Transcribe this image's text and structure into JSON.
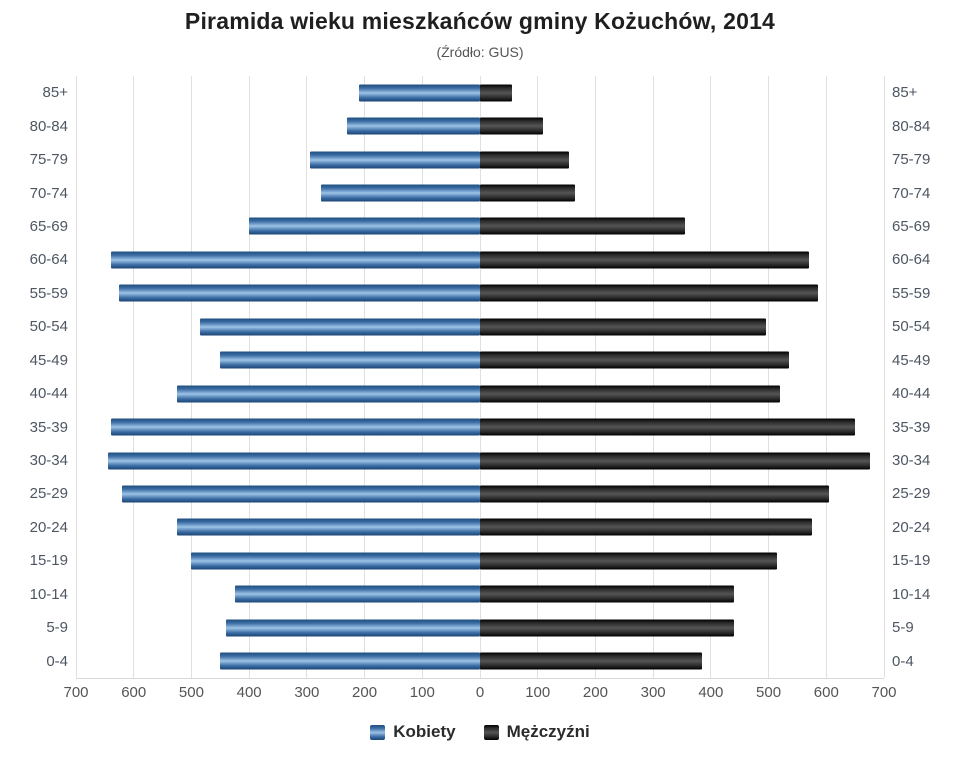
{
  "chart_data": {
    "type": "bar",
    "variant": "population-pyramid",
    "title": "Piramida wieku mieszkańców gminy Kożuchów, 2014",
    "subtitle": "(Źródło: GUS)",
    "categories": [
      "85+",
      "80-84",
      "75-79",
      "70-74",
      "65-69",
      "60-64",
      "55-59",
      "50-54",
      "45-49",
      "40-44",
      "35-39",
      "30-34",
      "25-29",
      "20-24",
      "15-19",
      "10-14",
      "5-9",
      "0-4"
    ],
    "series": [
      {
        "name": "Kobiety",
        "side": "left",
        "color": "#4f81bd",
        "values": [
          210,
          230,
          295,
          275,
          400,
          640,
          625,
          485,
          450,
          525,
          640,
          645,
          620,
          525,
          500,
          425,
          440,
          450
        ]
      },
      {
        "name": "Mężczyźni",
        "side": "right",
        "color": "#1a1a1a",
        "values": [
          55,
          110,
          155,
          165,
          355,
          570,
          585,
          495,
          535,
          520,
          650,
          675,
          605,
          575,
          515,
          440,
          440,
          385
        ]
      }
    ],
    "x_axis": {
      "max": 700,
      "tick_interval": 100,
      "tick_labels": [
        "700",
        "600",
        "500",
        "400",
        "300",
        "200",
        "100",
        "0",
        "100",
        "200",
        "300",
        "400",
        "500",
        "600",
        "700"
      ]
    },
    "y_axis": {
      "shown_on_both_sides": true
    },
    "grid": true,
    "legend_position": "bottom"
  }
}
